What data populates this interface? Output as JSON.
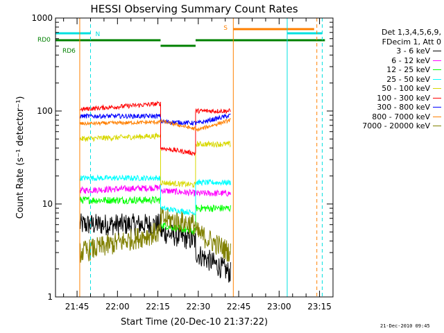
{
  "chart_data": {
    "type": "line",
    "title": "HESSI Observing Summary Count Rates",
    "xlabel": "Start Time (20-Dec-10 21:37:22)",
    "ylabel": "Count Rate (s⁻¹ detector⁻¹)",
    "yscale": "log",
    "ylim": [
      1,
      1000
    ],
    "xlim": [
      "21:37",
      "23:20"
    ],
    "yticks": [
      "1",
      "10",
      "100",
      "1000"
    ],
    "xticks": [
      "21:45",
      "22:00",
      "22:15",
      "22:30",
      "22:45",
      "23:00",
      "23:15"
    ],
    "grid": false,
    "legend_position": "right",
    "legend_header": [
      "Det 1,3,4,5,6,9,",
      "FDecim 1, Att 0"
    ],
    "timestamp": "21-Dec-2010 09:45",
    "flags": [
      {
        "label": "N",
        "color": "#00e0e0",
        "start": "21:37",
        "end": "21:50"
      },
      {
        "label": "RD0",
        "color": "#008000",
        "start": "21:37",
        "end": "22:16"
      },
      {
        "label": "RD6",
        "color": "#008000",
        "start": "22:16",
        "end": "22:29"
      },
      {
        "label": "",
        "color": "#008000",
        "start": "22:29",
        "end": "23:17"
      },
      {
        "label": "S",
        "color": "#ff8000",
        "start": "22:43",
        "end": "23:13"
      },
      {
        "label": "",
        "color": "#00e0e0",
        "start": "23:03",
        "end": "23:16"
      }
    ],
    "vlines": [
      {
        "time": "21:37",
        "color": "#00e0e0",
        "style": "solid"
      },
      {
        "time": "21:46",
        "color": "#ff8000",
        "style": "solid"
      },
      {
        "time": "21:50",
        "color": "#00e0e0",
        "style": "dashed"
      },
      {
        "time": "22:43",
        "color": "#ff8000",
        "style": "solid"
      },
      {
        "time": "23:03",
        "color": "#00e0e0",
        "style": "solid"
      },
      {
        "time": "23:14",
        "color": "#ff8000",
        "style": "dashed"
      },
      {
        "time": "23:16",
        "color": "#00e0e0",
        "style": "dashed"
      }
    ],
    "series": [
      {
        "name": "3 - 6 keV",
        "color": "#000000",
        "noise": 0.12,
        "segments": [
          {
            "start": "21:46",
            "end": "22:16",
            "y0": 6,
            "y1": 6
          },
          {
            "start": "22:16",
            "end": "22:29",
            "y0": 5,
            "y1": 4
          },
          {
            "start": "22:29",
            "end": "22:42",
            "y0": 3,
            "y1": 1.8
          }
        ]
      },
      {
        "name": "6 - 12 keV",
        "color": "#ff00ff",
        "noise": 0.035,
        "segments": [
          {
            "start": "21:46",
            "end": "22:16",
            "y0": 14,
            "y1": 15
          },
          {
            "start": "22:16",
            "end": "22:29",
            "y0": 14,
            "y1": 13
          },
          {
            "start": "22:29",
            "end": "22:42",
            "y0": 13,
            "y1": 13
          }
        ]
      },
      {
        "name": "12 - 25 keV",
        "color": "#00ff00",
        "noise": 0.04,
        "segments": [
          {
            "start": "21:46",
            "end": "22:16",
            "y0": 11,
            "y1": 11
          },
          {
            "start": "22:16",
            "end": "22:29",
            "y0": 6,
            "y1": 5
          },
          {
            "start": "22:29",
            "end": "22:42",
            "y0": 9,
            "y1": 9
          }
        ]
      },
      {
        "name": "25 - 50 keV",
        "color": "#00ffff",
        "noise": 0.03,
        "segments": [
          {
            "start": "21:46",
            "end": "22:16",
            "y0": 19,
            "y1": 19
          },
          {
            "start": "22:16",
            "end": "22:29",
            "y0": 9,
            "y1": 8
          },
          {
            "start": "22:29",
            "end": "22:42",
            "y0": 17,
            "y1": 17
          }
        ]
      },
      {
        "name": "50 - 100 keV",
        "color": "#d8d800",
        "noise": 0.03,
        "segments": [
          {
            "start": "21:46",
            "end": "22:16",
            "y0": 50,
            "y1": 54
          },
          {
            "start": "22:16",
            "end": "22:29",
            "y0": 17,
            "y1": 16
          },
          {
            "start": "22:29",
            "end": "22:42",
            "y0": 44,
            "y1": 44
          }
        ]
      },
      {
        "name": "100 - 300 keV",
        "color": "#ff0000",
        "noise": 0.025,
        "segments": [
          {
            "start": "21:46",
            "end": "22:16",
            "y0": 104,
            "y1": 120
          },
          {
            "start": "22:16",
            "end": "22:29",
            "y0": 40,
            "y1": 35
          },
          {
            "start": "22:29",
            "end": "22:42",
            "y0": 100,
            "y1": 100
          }
        ]
      },
      {
        "name": "300 - 800 keV",
        "color": "#0000ff",
        "noise": 0.025,
        "segments": [
          {
            "start": "21:46",
            "end": "22:16",
            "y0": 88,
            "y1": 88
          },
          {
            "start": "22:16",
            "end": "22:29",
            "y0": 77,
            "y1": 74
          },
          {
            "start": "22:29",
            "end": "22:42",
            "y0": 73,
            "y1": 90
          }
        ]
      },
      {
        "name": "800 - 7000 keV",
        "color": "#ff8000",
        "noise": 0.02,
        "segments": [
          {
            "start": "21:46",
            "end": "22:16",
            "y0": 73,
            "y1": 76
          },
          {
            "start": "22:16",
            "end": "22:29",
            "y0": 78,
            "y1": 64
          },
          {
            "start": "22:29",
            "end": "22:42",
            "y0": 62,
            "y1": 80
          }
        ]
      },
      {
        "name": "7000 - 20000 keV",
        "color": "#808000",
        "noise": 0.12,
        "segments": [
          {
            "start": "21:46",
            "end": "22:16",
            "y0": 3,
            "y1": 5
          },
          {
            "start": "22:16",
            "end": "22:29",
            "y0": 7,
            "y1": 6
          },
          {
            "start": "22:29",
            "end": "22:42",
            "y0": 5,
            "y1": 3
          }
        ]
      }
    ]
  }
}
